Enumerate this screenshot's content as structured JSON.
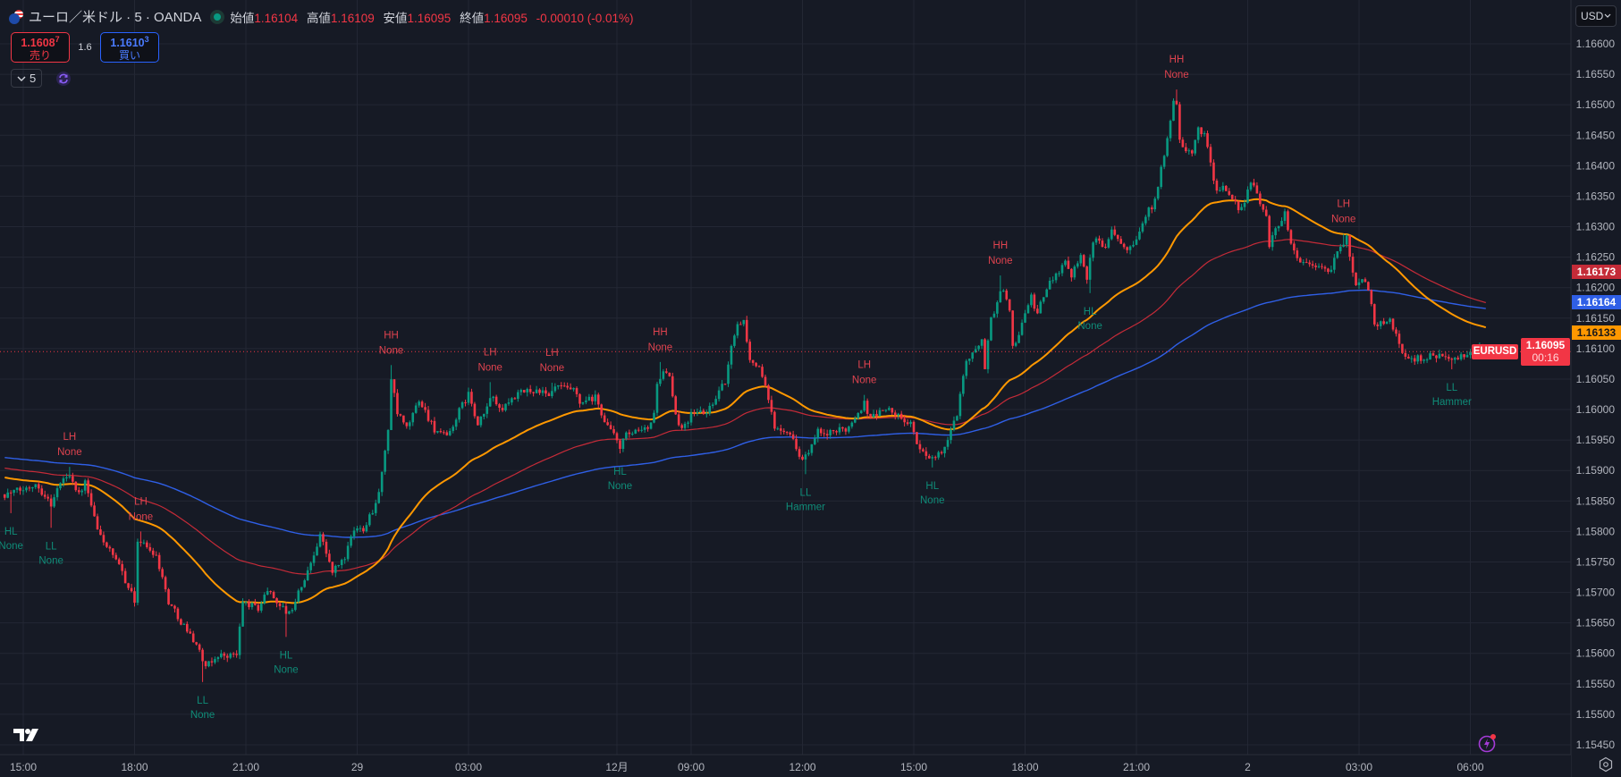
{
  "header": {
    "title": "ユーロ／米ドル · 5 · OANDA",
    "ohlc": [
      {
        "label": "始値",
        "value": "1.16104"
      },
      {
        "label": "高値",
        "value": "1.16109"
      },
      {
        "label": "安値",
        "value": "1.16095"
      },
      {
        "label": "終値",
        "value": "1.16095"
      }
    ],
    "change": "-0.00010 (-0.01%)"
  },
  "trade": {
    "sell_price": "1.1608",
    "sell_sup": "7",
    "sell_label": "売り",
    "spread": "1.6",
    "buy_price": "1.1610",
    "buy_sup": "3",
    "buy_label": "買い"
  },
  "indicators": {
    "count": "5"
  },
  "currency": "USD",
  "colors": {
    "background": "#161a25",
    "grid": "#232734",
    "up": "#089981",
    "down": "#f23645",
    "ma_orange": "#ff9800",
    "ma_red": "#c42b38",
    "ma_blue": "#2f5fe6"
  },
  "icons": [
    "currency-flag-icon",
    "market-open-dot-icon",
    "chevron-down-icon",
    "sync-icon",
    "tradingview-logo-icon",
    "lightning-alert-icon",
    "settings-icon"
  ],
  "chart_data": {
    "type": "candlestick",
    "symbol": "EURUSD",
    "interval": "5",
    "ylim": [
      1.1545,
      1.166
    ],
    "y_ticks": [
      "1.16600",
      "1.16550",
      "1.16500",
      "1.16450",
      "1.16400",
      "1.16350",
      "1.16300",
      "1.16250",
      "1.16200",
      "1.16150",
      "1.16100",
      "1.16050",
      "1.16000",
      "1.15950",
      "1.15900",
      "1.15850",
      "1.15800",
      "1.15750",
      "1.15700",
      "1.15650",
      "1.15600",
      "1.15550",
      "1.15500",
      "1.15450"
    ],
    "x_ticks": [
      {
        "label": "15:00",
        "time": "11-28 15:00"
      },
      {
        "label": "18:00",
        "time": "11-28 18:00"
      },
      {
        "label": "21:00",
        "time": "11-28 21:00"
      },
      {
        "label": "29",
        "time": "11-29 00:00"
      },
      {
        "label": "03:00",
        "time": "11-29 03:00"
      },
      {
        "label": "12月",
        "time": "12-01 07:00"
      },
      {
        "label": "09:00",
        "time": "12-01 09:00"
      },
      {
        "label": "12:00",
        "time": "12-01 12:00"
      },
      {
        "label": "15:00",
        "time": "12-01 15:00"
      },
      {
        "label": "18:00",
        "time": "12-01 18:00"
      },
      {
        "label": "21:00",
        "time": "12-01 21:00"
      },
      {
        "label": "2",
        "time": "12-02 00:00"
      },
      {
        "label": "03:00",
        "time": "12-02 03:00"
      },
      {
        "label": "06:00",
        "time": "12-02 06:00"
      }
    ],
    "grid": true,
    "price_path": [
      [
        "11-28 14:30",
        1.15861
      ],
      [
        "11-28 15:05",
        1.1587
      ],
      [
        "11-28 15:20",
        1.1588
      ],
      [
        "11-28 15:45",
        1.15845
      ],
      [
        "11-28 16:00",
        1.1588
      ],
      [
        "11-28 16:15",
        1.15895
      ],
      [
        "11-28 16:30",
        1.1586
      ],
      [
        "11-28 16:40",
        1.1588
      ],
      [
        "11-28 17:00",
        1.15802
      ],
      [
        "11-28 17:40",
        1.15733
      ],
      [
        "11-28 18:00",
        1.15685
      ],
      [
        "11-28 18:05",
        1.15787
      ],
      [
        "11-28 18:35",
        1.15762
      ],
      [
        "11-28 18:55",
        1.15685
      ],
      [
        "11-28 19:20",
        1.15645
      ],
      [
        "11-28 19:40",
        1.15616
      ],
      [
        "11-28 19:55",
        1.15576
      ],
      [
        "11-28 20:15",
        1.15597
      ],
      [
        "11-28 20:45",
        1.15597
      ],
      [
        "11-28 20:55",
        1.15685
      ],
      [
        "11-28 21:20",
        1.15674
      ],
      [
        "11-28 21:35",
        1.15704
      ],
      [
        "11-28 22:00",
        1.15674
      ],
      [
        "11-28 22:10",
        1.15664
      ],
      [
        "11-28 22:25",
        1.15699
      ],
      [
        "11-28 22:40",
        1.15733
      ],
      [
        "11-28 23:00",
        1.15796
      ],
      [
        "11-28 23:20",
        1.15733
      ],
      [
        "11-28 23:40",
        1.15758
      ],
      [
        "11-28 23:55",
        1.15802
      ],
      [
        "11-29 00:10",
        1.15806
      ],
      [
        "11-29 00:30",
        1.15846
      ],
      [
        "11-29 00:40",
        1.15894
      ],
      [
        "11-29 00:50",
        1.15968
      ],
      [
        "11-29 00:55",
        1.1605
      ],
      [
        "11-29 01:05",
        1.15993
      ],
      [
        "11-29 01:20",
        1.15968
      ],
      [
        "11-29 01:40",
        1.16016
      ],
      [
        "11-29 02:05",
        1.15968
      ],
      [
        "11-29 02:25",
        1.15953
      ],
      [
        "11-29 02:45",
        1.15997
      ],
      [
        "11-29 03:00",
        1.16026
      ],
      [
        "11-29 03:15",
        1.15972
      ],
      [
        "11-29 03:40",
        1.16026
      ],
      [
        "11-29 03:50",
        1.15997
      ],
      [
        "11-29 04:15",
        1.16022
      ],
      [
        "11-29 04:35",
        1.16031
      ],
      [
        "11-29 04:55",
        1.16031
      ],
      [
        "11-29 05:10",
        1.16019
      ],
      [
        "11-29 05:20",
        1.16037
      ],
      [
        "11-29 05:50",
        1.16031
      ],
      [
        "11-29 06:00",
        1.16009
      ],
      [
        "11-29 06:25",
        1.16019
      ],
      [
        "11-29 06:40",
        1.15982
      ],
      [
        "11-29 06:55",
        1.15957
      ],
      [
        "12-01 07:05",
        1.1594
      ],
      [
        "12-01 07:15",
        1.15957
      ],
      [
        "12-01 07:35",
        1.15963
      ],
      [
        "12-01 07:50",
        1.15968
      ],
      [
        "12-01 08:00",
        1.15993
      ],
      [
        "12-01 08:05",
        1.16045
      ],
      [
        "12-01 08:15",
        1.1606
      ],
      [
        "12-01 08:25",
        1.16051
      ],
      [
        "12-01 08:35",
        1.15987
      ],
      [
        "12-01 08:45",
        1.15972
      ],
      [
        "12-01 09:05",
        1.15997
      ],
      [
        "12-01 09:25",
        1.15994
      ],
      [
        "12-01 09:40",
        1.16022
      ],
      [
        "12-01 09:55",
        1.16045
      ],
      [
        "12-01 10:05",
        1.161
      ],
      [
        "12-01 10:10",
        1.16125
      ],
      [
        "12-01 10:15",
        1.16144
      ],
      [
        "12-01 10:25",
        1.16145
      ],
      [
        "12-01 10:35",
        1.16081
      ],
      [
        "12-01 10:45",
        1.16075
      ],
      [
        "12-01 10:55",
        1.16056
      ],
      [
        "12-01 11:10",
        1.15993
      ],
      [
        "12-01 11:15",
        1.15972
      ],
      [
        "12-01 11:35",
        1.15968
      ],
      [
        "12-01 11:50",
        1.15938
      ],
      [
        "12-01 12:00",
        1.15919
      ],
      [
        "12-01 12:10",
        1.15928
      ],
      [
        "12-01 12:25",
        1.15963
      ],
      [
        "12-01 12:35",
        1.15958
      ],
      [
        "12-01 12:55",
        1.15963
      ],
      [
        "12-01 13:15",
        1.15972
      ],
      [
        "12-01 13:30",
        1.15997
      ],
      [
        "12-01 13:40",
        1.1601
      ],
      [
        "12-01 13:50",
        1.15987
      ],
      [
        "12-01 14:15",
        1.16002
      ],
      [
        "12-01 14:30",
        1.15993
      ],
      [
        "12-01 14:45",
        1.15978
      ],
      [
        "12-01 14:55",
        1.15982
      ],
      [
        "12-01 15:05",
        1.15938
      ],
      [
        "12-01 15:20",
        1.15928
      ],
      [
        "12-01 15:35",
        1.15919
      ],
      [
        "12-01 15:50",
        1.15938
      ],
      [
        "12-01 16:00",
        1.15963
      ],
      [
        "12-01 16:10",
        1.15993
      ],
      [
        "12-01 16:15",
        1.16031
      ],
      [
        "12-01 16:25",
        1.16081
      ],
      [
        "12-01 16:40",
        1.16095
      ],
      [
        "12-01 16:50",
        1.16119
      ],
      [
        "12-01 16:55",
        1.1607
      ],
      [
        "12-01 17:05",
        1.16148
      ],
      [
        "12-01 17:15",
        1.16178
      ],
      [
        "12-01 17:25",
        1.162
      ],
      [
        "12-01 17:35",
        1.16158
      ],
      [
        "12-01 17:40",
        1.16104
      ],
      [
        "12-01 17:50",
        1.16125
      ],
      [
        "12-01 18:00",
        1.16158
      ],
      [
        "12-01 18:10",
        1.16183
      ],
      [
        "12-01 18:20",
        1.16158
      ],
      [
        "12-01 18:35",
        1.16198
      ],
      [
        "12-01 18:45",
        1.16217
      ],
      [
        "12-01 19:05",
        1.16242
      ],
      [
        "12-01 19:15",
        1.16222
      ],
      [
        "12-01 19:30",
        1.16257
      ],
      [
        "12-01 19:40",
        1.16217
      ],
      [
        "12-01 19:50",
        1.16276
      ],
      [
        "12-01 20:10",
        1.16271
      ],
      [
        "12-01 20:20",
        1.16295
      ],
      [
        "12-01 20:45",
        1.16266
      ],
      [
        "12-01 21:00",
        1.16281
      ],
      [
        "12-01 21:15",
        1.16318
      ],
      [
        "12-01 21:25",
        1.16334
      ],
      [
        "12-01 21:35",
        1.16368
      ],
      [
        "12-01 21:45",
        1.16418
      ],
      [
        "12-01 21:50",
        1.16442
      ],
      [
        "12-01 22:00",
        1.16501
      ],
      [
        "12-01 22:05",
        1.165
      ],
      [
        "12-01 22:10",
        1.16447
      ],
      [
        "12-01 22:20",
        1.16418
      ],
      [
        "12-01 22:30",
        1.16422
      ],
      [
        "12-01 22:40",
        1.16462
      ],
      [
        "12-01 22:50",
        1.16452
      ],
      [
        "12-01 23:00",
        1.16403
      ],
      [
        "12-01 23:10",
        1.16359
      ],
      [
        "12-01 23:20",
        1.16364
      ],
      [
        "12-01 23:35",
        1.16339
      ],
      [
        "12-01 23:50",
        1.1633
      ],
      [
        "12-02 00:05",
        1.16374
      ],
      [
        "12-02 00:20",
        1.16339
      ],
      [
        "12-02 00:30",
        1.1632
      ],
      [
        "12-02 00:35",
        1.16271
      ],
      [
        "12-02 00:45",
        1.16295
      ],
      [
        "12-02 01:00",
        1.16324
      ],
      [
        "12-02 01:10",
        1.16271
      ],
      [
        "12-02 01:25",
        1.16242
      ],
      [
        "12-02 01:50",
        1.16237
      ],
      [
        "12-02 02:00",
        1.16232
      ],
      [
        "12-02 02:15",
        1.16227
      ],
      [
        "12-02 02:25",
        1.16261
      ],
      [
        "12-02 02:40",
        1.1628
      ],
      [
        "12-02 02:45",
        1.16251
      ],
      [
        "12-02 02:55",
        1.16207
      ],
      [
        "12-02 03:05",
        1.16217
      ],
      [
        "12-02 03:15",
        1.16198
      ],
      [
        "12-02 03:25",
        1.16139
      ],
      [
        "12-02 03:35",
        1.16144
      ],
      [
        "12-02 03:50",
        1.16144
      ],
      [
        "12-02 04:00",
        1.16125
      ],
      [
        "12-02 04:10",
        1.16095
      ],
      [
        "12-02 04:20",
        1.16081
      ],
      [
        "12-02 04:40",
        1.16085
      ],
      [
        "12-02 05:10",
        1.1609
      ],
      [
        "12-02 05:30",
        1.16078
      ],
      [
        "12-02 05:55",
        1.1609
      ],
      [
        "12-02 06:10",
        1.16104
      ],
      [
        "12-02 06:25",
        1.16095
      ]
    ],
    "pivots": [
      {
        "kind": "low",
        "label": "HL",
        "pattern": "None",
        "time": "11-28 14:40",
        "price": 1.1583
      },
      {
        "kind": "low",
        "label": "LL",
        "pattern": "None",
        "time": "11-28 15:45",
        "price": 1.15806
      },
      {
        "kind": "high",
        "label": "LH",
        "pattern": "None",
        "time": "11-28 16:15",
        "price": 1.15906
      },
      {
        "kind": "high",
        "label": "LH",
        "pattern": "None",
        "time": "11-28 18:10",
        "price": 1.158
      },
      {
        "kind": "low",
        "label": "LL",
        "pattern": "None",
        "time": "11-28 19:50",
        "price": 1.15553
      },
      {
        "kind": "low",
        "label": "HL",
        "pattern": "None",
        "time": "11-28 22:05",
        "price": 1.15627
      },
      {
        "kind": "high",
        "label": "HH",
        "pattern": "None",
        "time": "11-29 00:55",
        "price": 1.16073
      },
      {
        "kind": "high",
        "label": "LH",
        "pattern": "None",
        "time": "11-29 03:35",
        "price": 1.16045
      },
      {
        "kind": "high",
        "label": "LH",
        "pattern": "None",
        "time": "11-29 05:15",
        "price": 1.16044
      },
      {
        "kind": "low",
        "label": "HL",
        "pattern": "None",
        "time": "12-01 07:05",
        "price": 1.15928
      },
      {
        "kind": "high",
        "label": "HH",
        "pattern": "None",
        "time": "12-01 08:10",
        "price": 1.16078
      },
      {
        "kind": "low",
        "label": "LL",
        "pattern": "Hammer",
        "time": "12-01 12:05",
        "price": 1.15894
      },
      {
        "kind": "high",
        "label": "LH",
        "pattern": "None",
        "time": "12-01 13:40",
        "price": 1.16024
      },
      {
        "kind": "low",
        "label": "HL",
        "pattern": "None",
        "time": "12-01 15:30",
        "price": 1.15905
      },
      {
        "kind": "high",
        "label": "HH",
        "pattern": "None",
        "time": "12-01 17:20",
        "price": 1.1622
      },
      {
        "kind": "low",
        "label": "HL",
        "pattern": "None",
        "time": "12-01 19:45",
        "price": 1.16191
      },
      {
        "kind": "high",
        "label": "HH",
        "pattern": "None",
        "time": "12-01 22:05",
        "price": 1.16525
      },
      {
        "kind": "high",
        "label": "LH",
        "pattern": "None",
        "time": "12-02 02:35",
        "price": 1.16288
      },
      {
        "kind": "low",
        "label": "LL",
        "pattern": "Hammer",
        "time": "12-02 05:30",
        "price": 1.16066
      }
    ],
    "moving_averages": [
      {
        "color": "#ff9800",
        "last": "1.16133"
      },
      {
        "color": "#c42b38",
        "last": "1.16173"
      },
      {
        "color": "#2f5fe6",
        "last": "1.16164"
      }
    ],
    "last_price": "1.16095",
    "countdown": "00:16"
  }
}
